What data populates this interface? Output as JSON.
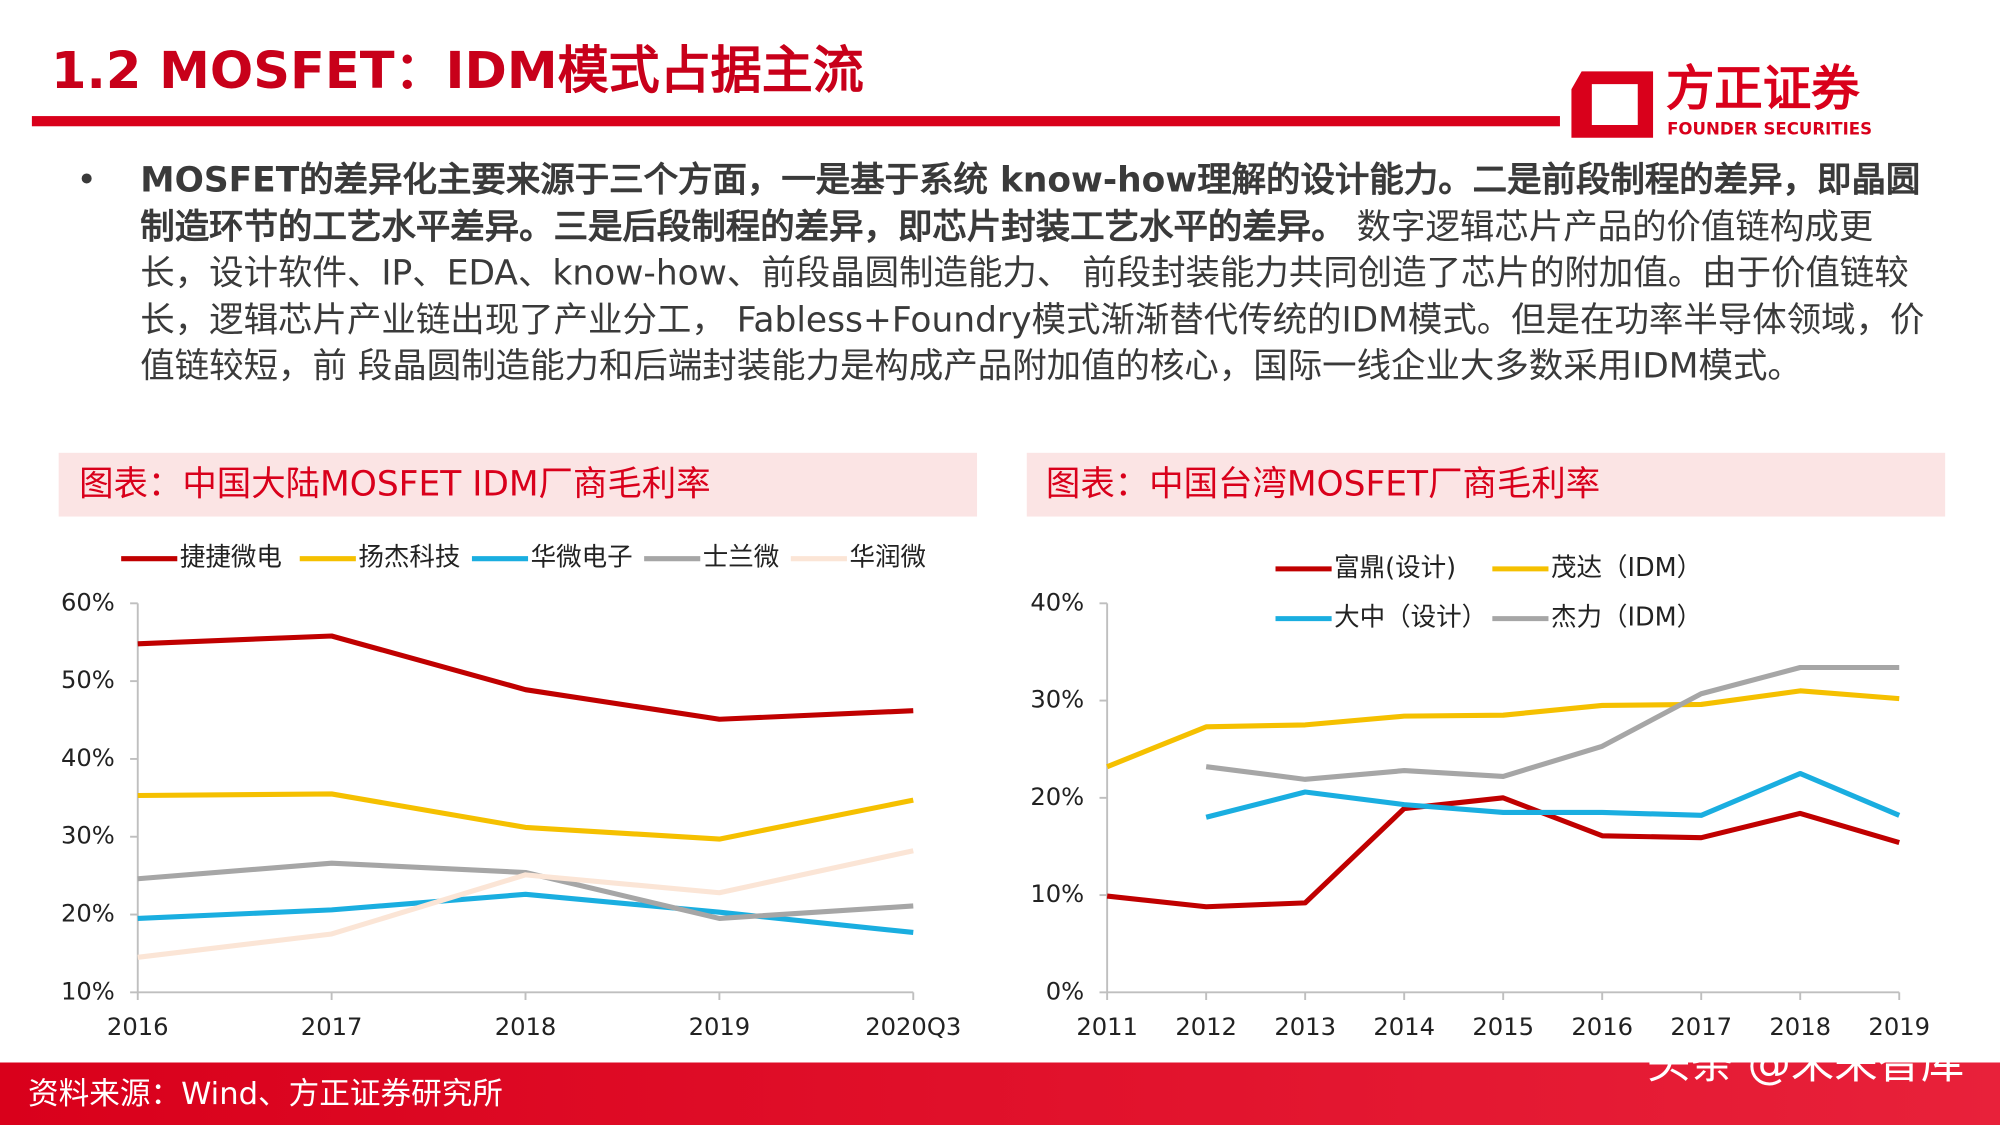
{
  "header": {
    "title": "1.2 MOSFET：IDM模式占据主流",
    "logo": "方正证券",
    "logo_en": "FOUNDER SECURITIES"
  },
  "body": {
    "bullet": "•",
    "bold_text": "MOSFET的差异化主要来源于三个方面，一是基于系统 know-how理解的设计能力。二是前段制程的差异，即晶圆制造环节的工艺水平差异。三是后段制程的差异，即芯片封装工艺水平的差异。",
    "text": " 数字逻辑芯片产品的价值链构成更长，设计软件、IP、EDA、know-how、前段晶圆制造能力、 前段封装能力共同创造了芯片的附加值。由于价值链较长，逻辑芯片产业链出现了产业分工， Fabless+Foundry模式渐渐替代传统的IDM模式。但是在功率半导体领域，价值链较短，前 段晶圆制造能力和后端封装能力是构成产品附加值的核心，国际一线企业大多数采用IDM模式。"
  },
  "chart_data": [
    {
      "type": "line",
      "title": "图表：中国大陆MOSFET IDM厂商毛利率",
      "categories": [
        "2016",
        "2017",
        "2018",
        "2019",
        "2020Q3"
      ],
      "ylim": [
        10,
        60
      ],
      "yticks": [
        {
          "value": 10,
          "label": "10%"
        },
        {
          "value": 20,
          "label": "20%"
        },
        {
          "value": 30,
          "label": "30%"
        },
        {
          "value": 40,
          "label": "40%"
        },
        {
          "value": 50,
          "label": "50%"
        },
        {
          "value": 60,
          "label": "60%"
        }
      ],
      "series": [
        {
          "name": "捷捷微电",
          "color": "#c00000",
          "values": [
            54.8,
            55.8,
            48.9,
            45.1,
            46.2
          ]
        },
        {
          "name": "扬杰科技",
          "color": "#f5c000",
          "values": [
            35.3,
            35.5,
            31.2,
            29.7,
            34.7
          ]
        },
        {
          "name": "华微电子",
          "color": "#1aaee0",
          "values": [
            19.5,
            20.6,
            22.6,
            20.3,
            17.7
          ]
        },
        {
          "name": "士兰微",
          "color": "#a6a6a6",
          "values": [
            24.6,
            26.6,
            25.4,
            19.5,
            21.1
          ]
        },
        {
          "name": "华润微",
          "color": "#fbe5d6",
          "values": [
            14.5,
            17.5,
            25.1,
            22.8,
            28.2
          ]
        }
      ]
    },
    {
      "type": "line",
      "title": "图表：中国台湾MOSFET厂商毛利率",
      "categories": [
        "2011",
        "2012",
        "2013",
        "2014",
        "2015",
        "2016",
        "2017",
        "2018",
        "2019"
      ],
      "ylim": [
        0,
        40
      ],
      "yticks": [
        {
          "value": 0,
          "label": "0%"
        },
        {
          "value": 10,
          "label": "10%"
        },
        {
          "value": 20,
          "label": "20%"
        },
        {
          "value": 30,
          "label": "30%"
        },
        {
          "value": 40,
          "label": "40%"
        }
      ],
      "series": [
        {
          "name": "富鼎(设计)",
          "color": "#c00000",
          "values": [
            9.9,
            8.8,
            9.2,
            18.9,
            20.0,
            16.1,
            15.9,
            18.4,
            15.4
          ]
        },
        {
          "name": "茂达（IDM）",
          "color": "#f5c000",
          "values": [
            23.2,
            27.3,
            27.5,
            28.4,
            28.5,
            29.5,
            29.6,
            31.0,
            30.2
          ]
        },
        {
          "name": "大中（设计）",
          "color": "#1aaee0",
          "values": [
            null,
            18.0,
            20.6,
            19.3,
            18.5,
            18.5,
            18.2,
            22.5,
            18.2
          ]
        },
        {
          "name": "杰力（IDM）",
          "color": "#a6a6a6",
          "values": [
            null,
            23.2,
            21.9,
            22.8,
            22.2,
            25.3,
            30.7,
            33.4,
            33.4
          ]
        }
      ]
    }
  ],
  "footer": {
    "source": "资料来源：Wind、方正证券研究所",
    "watermark": "头条 @未来智库"
  }
}
